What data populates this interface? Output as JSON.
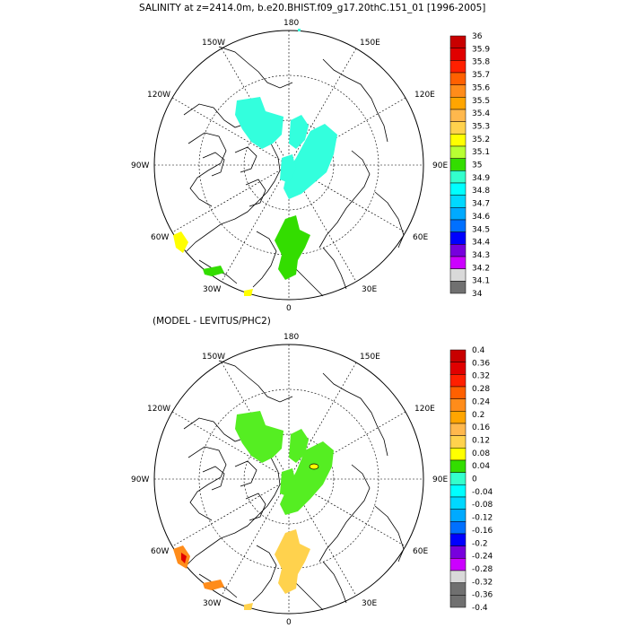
{
  "panel1": {
    "title": "SALINITY at z=2414.0m, b.e20.BHIST.f09_g17.20thC.151_01 [1996-2005]",
    "lon_labels": {
      "top": "180",
      "bottom": "0",
      "left": "90W",
      "right": "90E",
      "ul1": "150W",
      "ul2": "120W",
      "ur1": "150E",
      "ur2": "120E",
      "ll1": "60W",
      "ll2": "30W",
      "lr1": "60E",
      "lr2": "30E"
    },
    "colorbar": {
      "labels": [
        "36",
        "35.9",
        "35.8",
        "35.7",
        "35.6",
        "35.5",
        "35.4",
        "35.3",
        "35.2",
        "35.1",
        "35",
        "34.9",
        "34.8",
        "34.7",
        "34.6",
        "34.5",
        "34.4",
        "34.3",
        "34.2",
        "34.1",
        "34"
      ],
      "colors": [
        "#c80000",
        "#e00000",
        "#ff2000",
        "#ff6000",
        "#ff8c1a",
        "#ffa500",
        "#ffb84d",
        "#ffd24d",
        "#ffff00",
        "#b8ff33",
        "#33dd00",
        "#33ffcc",
        "#00ffff",
        "#00d8ff",
        "#00aaff",
        "#0070ff",
        "#0000ff",
        "#7700dd",
        "#cc00ff",
        "#d9d9d9"
      ],
      "bottom_color": "#707070"
    },
    "fields": [
      {
        "name": "teal-basin",
        "color": "#33ffdd"
      },
      {
        "name": "green-atlantic",
        "color": "#33dd00"
      },
      {
        "name": "yellow-patch",
        "color": "#ffff00"
      }
    ]
  },
  "panel2": {
    "title": "(MODEL - LEVITUS/PHC2)",
    "lon_labels": {
      "top": "180",
      "bottom": "0",
      "left": "90W",
      "right": "90E",
      "ul1": "150W",
      "ul2": "120W",
      "ur1": "150E",
      "ur2": "120E",
      "ll1": "60W",
      "ll2": "30W",
      "lr1": "60E",
      "lr2": "30E"
    },
    "colorbar": {
      "labels": [
        "0.4",
        "0.36",
        "0.32",
        "0.28",
        "0.24",
        "0.2",
        "0.16",
        "0.12",
        "0.08",
        "0.04",
        "0",
        "-0.04",
        "-0.08",
        "-0.12",
        "-0.16",
        "-0.2",
        "-0.24",
        "-0.28",
        "-0.32",
        "-0.36",
        "-0.4"
      ],
      "colors": [
        "#c80000",
        "#e00000",
        "#ff2000",
        "#ff6000",
        "#ff8c1a",
        "#ffa500",
        "#ffb84d",
        "#ffd24d",
        "#ffff00",
        "#33dd00",
        "#33ffcc",
        "#00ffff",
        "#00d8ff",
        "#00aaff",
        "#0070ff",
        "#0000ff",
        "#7700dd",
        "#cc00ff",
        "#d9d9d9",
        "#707070"
      ],
      "bottom_color": "#707070"
    },
    "fields": [
      {
        "name": "green-basin",
        "color": "#55ee22"
      },
      {
        "name": "gold-atlantic",
        "color": "#ffd24d"
      },
      {
        "name": "orange-patch",
        "color": "#ff8c1a"
      }
    ]
  }
}
